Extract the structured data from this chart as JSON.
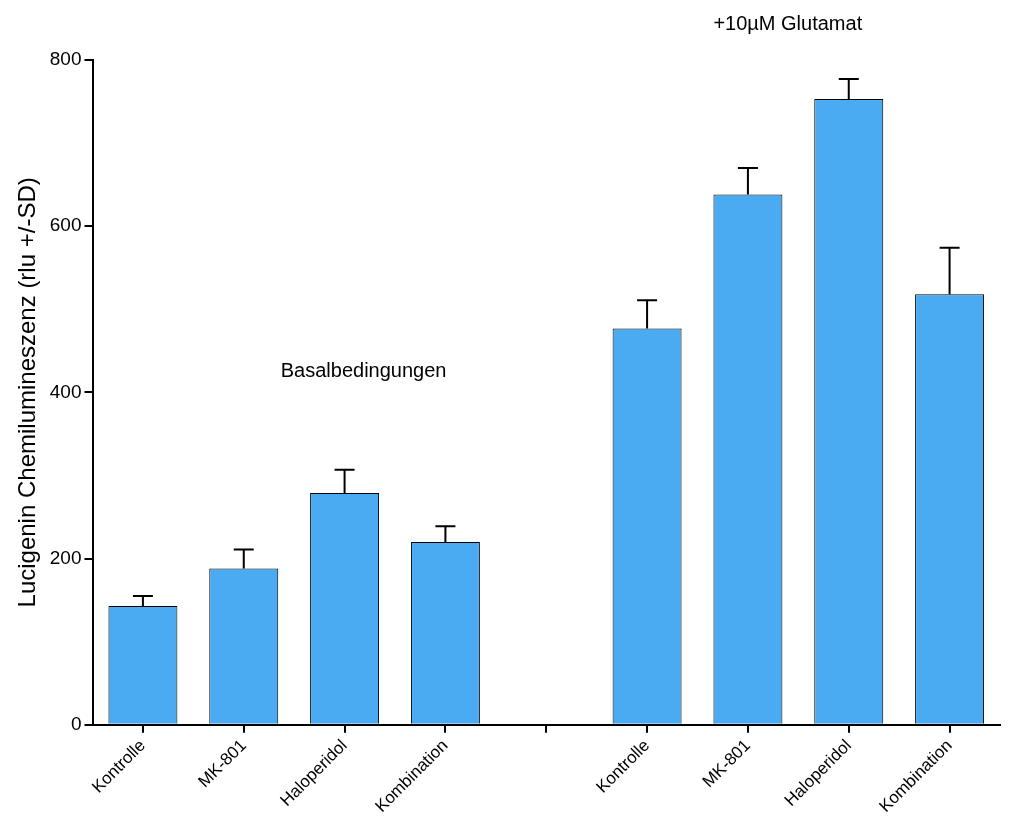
{
  "chart_data": {
    "type": "bar",
    "ylabel": "Lucigenin Chemilumineszenz (rlu +/-SD)",
    "categories": [
      "Kontrolle",
      "MK-801",
      "Haloperidol",
      "Kombination",
      null,
      "Kontrolle",
      "MK-801",
      "Haloperidol",
      "Kombination"
    ],
    "values": [
      143,
      188,
      279,
      220,
      null,
      477,
      638,
      753,
      518
    ],
    "errors": [
      [
        143,
        155
      ],
      [
        188,
        211
      ],
      [
        279,
        307
      ],
      [
        220,
        239
      ],
      null,
      [
        477,
        511
      ],
      [
        638,
        670
      ],
      [
        753,
        777
      ],
      [
        518,
        574
      ]
    ],
    "color": "#4aabf3",
    "ylim": [
      0,
      800
    ],
    "yticks": [
      0,
      200,
      400,
      600,
      800
    ],
    "grid": false,
    "legend": false,
    "annotations": [
      "+10µM Glutamat",
      "Basalbedingungen"
    ]
  }
}
